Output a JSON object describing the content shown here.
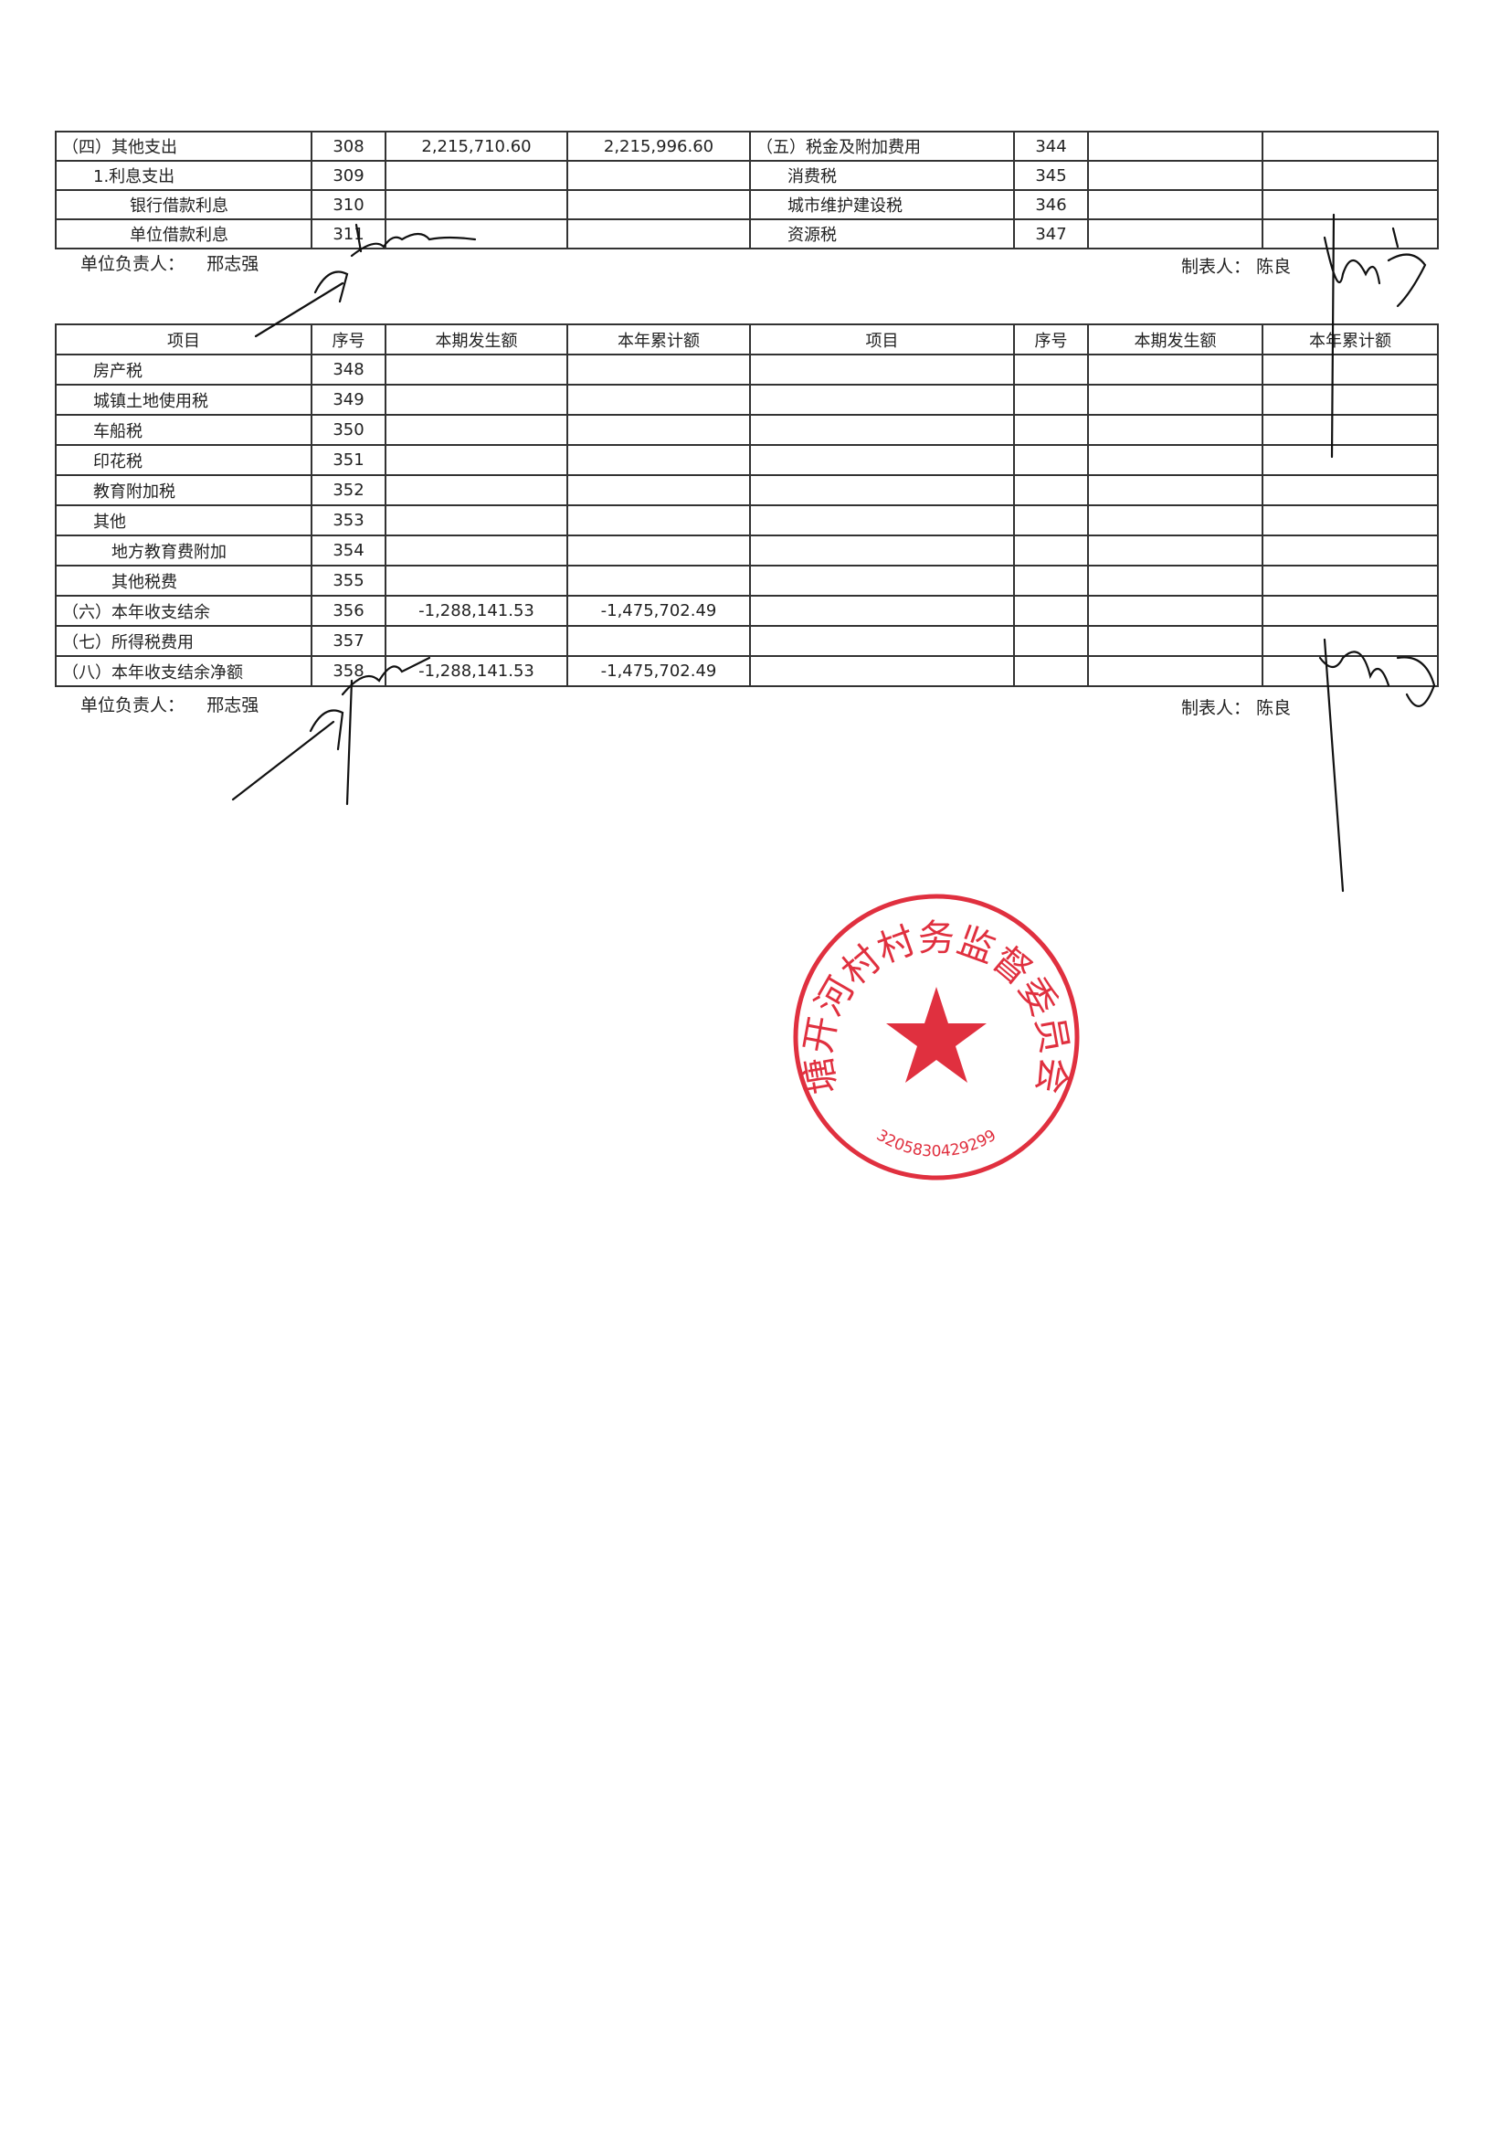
{
  "table1": {
    "rows": [
      {
        "left_item": "（四）其他支出",
        "left_no": "308",
        "left_current": "2,215,710.60",
        "left_ytd": "2,215,996.60",
        "right_item": "（五）税金及附加费用",
        "right_no": "344",
        "right_current": "",
        "right_ytd": ""
      },
      {
        "left_item": "1.利息支出",
        "left_no": "309",
        "left_current": "",
        "left_ytd": "",
        "right_item": "消费税",
        "right_no": "345",
        "right_current": "",
        "right_ytd": ""
      },
      {
        "left_item": "银行借款利息",
        "left_no": "310",
        "left_current": "",
        "left_ytd": "",
        "right_item": "城市维护建设税",
        "right_no": "346",
        "right_current": "",
        "right_ytd": ""
      },
      {
        "left_item": "单位借款利息",
        "left_no": "311",
        "left_current": "",
        "left_ytd": "",
        "right_item": "资源税",
        "right_no": "347",
        "right_current": "",
        "right_ytd": ""
      }
    ]
  },
  "footer": {
    "unit_head_label": "单位负责人：",
    "unit_head": "邢志强",
    "preparer_label": "制表人：",
    "preparer": "陈良"
  },
  "table2": {
    "headers": [
      "项目",
      "序号",
      "本期发生额",
      "本年累计额",
      "项目",
      "序号",
      "本期发生额",
      "本年累计额"
    ],
    "rows": [
      {
        "item": "房产税",
        "no": "348",
        "current": "",
        "ytd": ""
      },
      {
        "item": "城镇土地使用税",
        "no": "349",
        "current": "",
        "ytd": ""
      },
      {
        "item": "车船税",
        "no": "350",
        "current": "",
        "ytd": ""
      },
      {
        "item": "印花税",
        "no": "351",
        "current": "",
        "ytd": ""
      },
      {
        "item": "教育附加税",
        "no": "352",
        "current": "",
        "ytd": ""
      },
      {
        "item": "其他",
        "no": "353",
        "current": "",
        "ytd": ""
      },
      {
        "item": "地方教育费附加",
        "no": "354",
        "current": "",
        "ytd": ""
      },
      {
        "item": "其他税费",
        "no": "355",
        "current": "",
        "ytd": ""
      },
      {
        "item": "（六）本年收支结余",
        "no": "356",
        "current": "-1,288,141.53",
        "ytd": "-1,475,702.49"
      },
      {
        "item": "（七）所得税费用",
        "no": "357",
        "current": "",
        "ytd": ""
      },
      {
        "item": "（八）本年收支结余净额",
        "no": "358",
        "current": "-1,288,141.53",
        "ytd": "-1,475,702.49"
      }
    ]
  },
  "stamp": {
    "text": "塘开河村村务监督委员会",
    "code": "3205830429299",
    "color": "#e0303f"
  }
}
